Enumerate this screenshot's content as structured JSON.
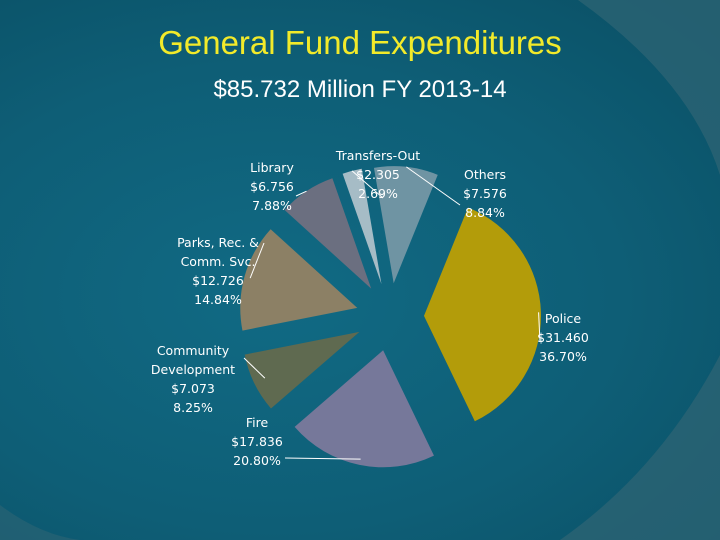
{
  "title": "General Fund Expenditures",
  "subtitle": "$85.732 Million FY 2013-14",
  "colors": {
    "title": "#f2ea2a",
    "background": "#0e5b72",
    "text": "#ffffff"
  },
  "chart_data": {
    "type": "pie",
    "title": "General Fund Expenditures",
    "subtitle": "$85.732 Million FY 2013-14",
    "exploded": true,
    "slices": [
      {
        "name": "Others",
        "amount": "$7.576",
        "percent_label": "8.84%",
        "value": 8.84,
        "color": "#6f94a3"
      },
      {
        "name": "Police",
        "amount": "$31.460",
        "percent_label": "36.70%",
        "value": 36.7,
        "color": "#b39c0a"
      },
      {
        "name": "Fire",
        "amount": "$17.836",
        "percent_label": "20.80%",
        "value": 20.8,
        "color": "#76789a"
      },
      {
        "name": "Community Development",
        "amount": "$7.073",
        "percent_label": "8.25%",
        "value": 8.25,
        "color": "#5f6a50"
      },
      {
        "name": "Parks, Rec. & Comm. Svc.",
        "amount": "$12.726",
        "percent_label": "14.84%",
        "value": 14.84,
        "color": "#8c8065"
      },
      {
        "name": "Library",
        "amount": "$6.756",
        "percent_label": "7.88%",
        "value": 7.88,
        "color": "#6b6f80"
      },
      {
        "name": "Transfers-Out",
        "amount": "$2.305",
        "percent_label": "2.69%",
        "value": 2.69,
        "color": "#a6bcc6"
      }
    ]
  },
  "labels": {
    "library": [
      "Library",
      "$6.756",
      "7.88%"
    ],
    "transfers": [
      "Transfers-Out",
      "$2.305",
      "2.69%"
    ],
    "others": [
      "Others",
      "$7.576",
      "8.84%"
    ],
    "parks": [
      "Parks, Rec. &",
      "Comm. Svc.",
      "$12.726",
      "14.84%"
    ],
    "police": [
      "Police",
      "$31.460",
      "36.70%"
    ],
    "community": [
      "Community",
      "Development",
      "$7.073",
      "8.25%"
    ],
    "fire": [
      "Fire",
      "$17.836",
      "20.80%"
    ]
  }
}
